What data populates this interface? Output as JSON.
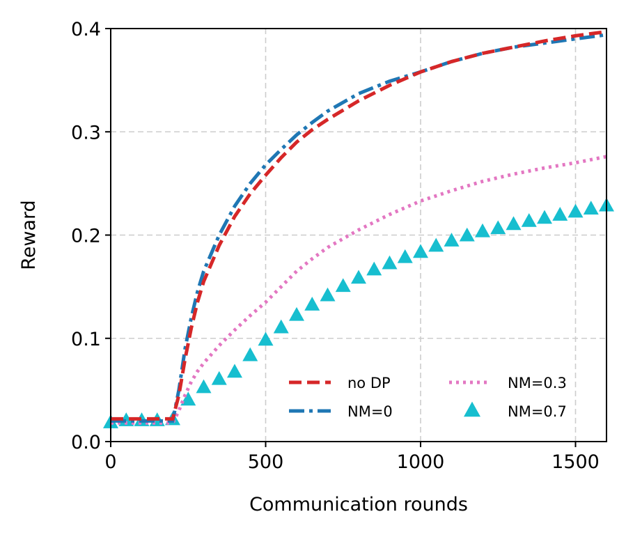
{
  "chart_data": {
    "type": "line",
    "title": "",
    "xlabel": "Communication rounds",
    "ylabel": "Reward",
    "xlim": [
      0,
      1600
    ],
    "ylim": [
      0,
      0.4
    ],
    "xticks": [
      0,
      500,
      1000,
      1500
    ],
    "xtick_labels": [
      "0",
      "500",
      "1000",
      "1500"
    ],
    "yticks": [
      0.0,
      0.1,
      0.2,
      0.3,
      0.4
    ],
    "ytick_labels": [
      "0.0",
      "0.1",
      "0.2",
      "0.3",
      "0.4"
    ],
    "grid": true,
    "legend_position": "bottom-right",
    "series": [
      {
        "name": "no DP",
        "color": "#d62728",
        "style": "dashed",
        "x": [
          0,
          100,
          200,
          220,
          240,
          260,
          280,
          300,
          350,
          400,
          450,
          500,
          550,
          600,
          650,
          700,
          800,
          900,
          1000,
          1100,
          1200,
          1300,
          1400,
          1500,
          1600
        ],
        "y": [
          0.022,
          0.022,
          0.022,
          0.045,
          0.08,
          0.11,
          0.135,
          0.155,
          0.19,
          0.218,
          0.24,
          0.258,
          0.275,
          0.29,
          0.302,
          0.312,
          0.33,
          0.345,
          0.358,
          0.368,
          0.376,
          0.382,
          0.388,
          0.393,
          0.397
        ]
      },
      {
        "name": "NM=0",
        "color": "#1f77b4",
        "style": "dashdot",
        "x": [
          0,
          100,
          200,
          220,
          240,
          260,
          280,
          300,
          350,
          400,
          450,
          500,
          550,
          600,
          650,
          700,
          800,
          900,
          1000,
          1100,
          1200,
          1300,
          1400,
          1500,
          1600
        ],
        "y": [
          0.02,
          0.02,
          0.02,
          0.05,
          0.09,
          0.12,
          0.145,
          0.165,
          0.2,
          0.228,
          0.25,
          0.268,
          0.283,
          0.297,
          0.309,
          0.32,
          0.337,
          0.349,
          0.358,
          0.368,
          0.376,
          0.382,
          0.386,
          0.39,
          0.394
        ]
      },
      {
        "name": "NM=0.3",
        "color": "#e377c2",
        "style": "dotted",
        "x": [
          0,
          100,
          200,
          220,
          240,
          260,
          280,
          300,
          350,
          400,
          450,
          500,
          550,
          600,
          650,
          700,
          800,
          900,
          1000,
          1100,
          1200,
          1300,
          1400,
          1500,
          1600
        ],
        "y": [
          0.018,
          0.018,
          0.018,
          0.03,
          0.045,
          0.058,
          0.068,
          0.076,
          0.093,
          0.108,
          0.122,
          0.135,
          0.15,
          0.165,
          0.177,
          0.188,
          0.205,
          0.22,
          0.233,
          0.243,
          0.252,
          0.259,
          0.265,
          0.27,
          0.276
        ]
      },
      {
        "name": "NM=0.7",
        "color": "#17becf",
        "style": "triangle-markers",
        "x": [
          0,
          50,
          100,
          150,
          200,
          250,
          300,
          350,
          400,
          450,
          500,
          550,
          600,
          650,
          700,
          750,
          800,
          850,
          900,
          950,
          1000,
          1050,
          1100,
          1150,
          1200,
          1250,
          1300,
          1350,
          1400,
          1450,
          1500,
          1550,
          1600
        ],
        "y": [
          0.018,
          0.02,
          0.02,
          0.02,
          0.021,
          0.04,
          0.052,
          0.06,
          0.067,
          0.083,
          0.098,
          0.11,
          0.122,
          0.132,
          0.141,
          0.15,
          0.158,
          0.166,
          0.172,
          0.178,
          0.183,
          0.189,
          0.194,
          0.199,
          0.203,
          0.206,
          0.21,
          0.213,
          0.216,
          0.219,
          0.222,
          0.225,
          0.228
        ]
      }
    ]
  }
}
